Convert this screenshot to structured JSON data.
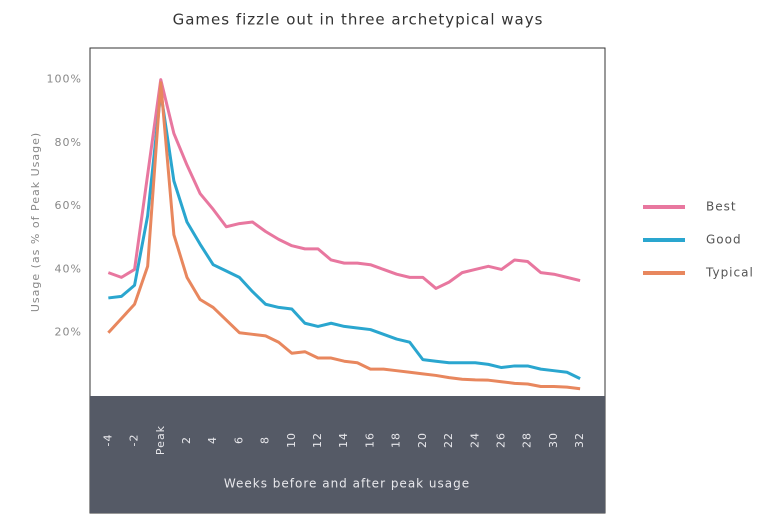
{
  "chart_data": {
    "type": "line",
    "title": "Games fizzle out in three archetypical ways",
    "x_label": "Weeks before and after peak usage",
    "y_label": "Usage (as % of Peak Usage)",
    "x": [
      -4,
      -3,
      -2,
      -1,
      0,
      1,
      2,
      3,
      4,
      5,
      6,
      7,
      8,
      9,
      10,
      11,
      12,
      13,
      14,
      15,
      16,
      17,
      18,
      19,
      20,
      21,
      22,
      23,
      24,
      25,
      26,
      27,
      28,
      29,
      30,
      31,
      32
    ],
    "series": [
      {
        "name": "Best",
        "color": "#e8779f",
        "values": [
          39,
          37.5,
          40,
          70,
          100,
          83,
          73,
          64,
          59,
          53.5,
          54.5,
          55,
          52,
          49.5,
          47.5,
          46.5,
          46.5,
          43,
          42,
          42,
          41.5,
          40,
          38.5,
          37.5,
          37.5,
          34,
          36,
          39,
          40,
          41,
          40,
          43,
          42.5,
          39,
          38.5,
          37.5,
          36.5
        ]
      },
      {
        "name": "Good",
        "color": "#2aa6cf",
        "values": [
          31,
          31.5,
          35,
          57,
          96,
          68,
          55,
          48,
          41.5,
          39.5,
          37.5,
          33,
          29,
          28,
          27.5,
          23,
          22,
          23,
          22,
          21.5,
          21,
          19.5,
          18,
          17,
          11.5,
          11,
          10.5,
          10.5,
          10.5,
          10,
          9,
          9.5,
          9.5,
          8.5,
          8,
          7.5,
          5.5
        ]
      },
      {
        "name": "Typical",
        "color": "#e8875e",
        "values": [
          20,
          24.5,
          29,
          41,
          99,
          51,
          37.5,
          30.5,
          28,
          24,
          20,
          19.5,
          19,
          17,
          13.5,
          14,
          12,
          12,
          11,
          10.5,
          8.5,
          8.5,
          8,
          7.5,
          7,
          6.5,
          5.8,
          5.3,
          5.1,
          5,
          4.5,
          4,
          3.8,
          3,
          3,
          2.8,
          2.3
        ]
      }
    ],
    "xlim": [
      -5.4,
      33.9
    ],
    "ylim": [
      0,
      110
    ],
    "xticks": [
      -4,
      -2,
      {
        "value": 0,
        "label": "Peak"
      },
      2,
      4,
      6,
      8,
      10,
      12,
      14,
      16,
      18,
      20,
      22,
      24,
      26,
      28,
      30,
      32
    ],
    "yticks": [
      {
        "value": 20,
        "label": "20%"
      },
      {
        "value": 40,
        "label": "40%"
      },
      {
        "value": 60,
        "label": "60%"
      },
      {
        "value": 80,
        "label": "80%"
      },
      {
        "value": 100,
        "label": "100%"
      }
    ],
    "legend_position": "right"
  }
}
